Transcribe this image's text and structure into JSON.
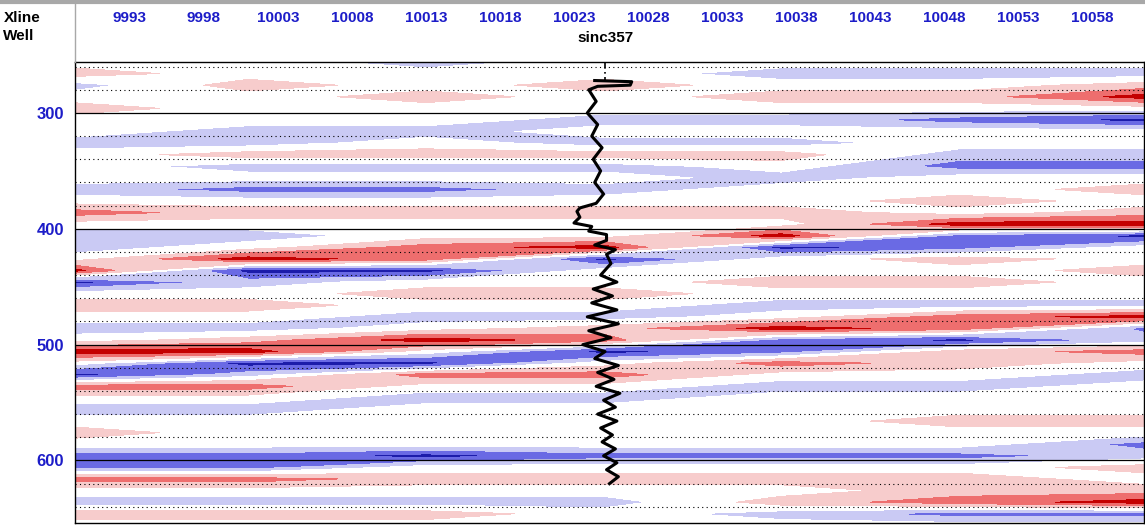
{
  "chart_data": {
    "type": "heatmap",
    "x_label": "Xline",
    "well_label": "Well",
    "x": [
      9989,
      10001,
      10013,
      10025,
      10037,
      10049,
      10062
    ],
    "y": [
      256,
      266,
      276,
      286,
      296,
      306,
      316,
      326,
      336,
      346,
      356,
      366,
      376,
      386,
      396,
      406,
      416,
      426,
      436,
      446,
      456,
      466,
      476,
      486,
      496,
      506,
      516,
      526,
      536,
      546,
      556,
      566,
      576,
      586,
      596,
      606,
      616,
      626,
      636,
      646,
      656
    ],
    "cells": [
      [
        0,
        0,
        -1,
        0,
        0,
        0,
        0
      ],
      [
        1,
        0,
        0,
        0,
        -1,
        -1,
        -1
      ],
      [
        -1,
        1,
        0,
        1,
        0,
        0,
        1
      ],
      [
        0,
        0,
        1,
        0,
        1,
        1,
        3
      ],
      [
        1,
        0,
        0,
        0,
        0,
        0,
        0
      ],
      [
        0,
        0,
        0,
        -1,
        -1,
        -2,
        -3
      ],
      [
        0,
        -1,
        -1,
        0,
        0,
        0,
        0
      ],
      [
        -1,
        -1,
        0,
        -1,
        -1,
        0,
        0
      ],
      [
        0,
        1,
        1,
        1,
        1,
        -1,
        -1
      ],
      [
        0,
        -1,
        -1,
        -1,
        0,
        -2,
        -2
      ],
      [
        0,
        0,
        0,
        0,
        -1,
        0,
        0
      ],
      [
        -1,
        -2,
        -2,
        -1,
        0,
        0,
        1
      ],
      [
        0,
        0,
        0,
        0,
        0,
        1,
        0
      ],
      [
        2,
        1,
        1,
        1,
        1,
        0,
        1
      ],
      [
        0,
        0,
        0,
        0,
        0,
        3,
        3
      ],
      [
        -1,
        -1,
        0,
        0,
        3,
        -2,
        -3
      ],
      [
        -1,
        0,
        2,
        3,
        -3,
        -2,
        0
      ],
      [
        0,
        3,
        2,
        -3,
        0,
        1,
        0
      ],
      [
        3,
        -3,
        -3,
        0,
        0,
        0,
        1
      ],
      [
        -3,
        -1,
        0,
        0,
        1,
        1,
        0
      ],
      [
        0,
        0,
        1,
        1,
        0,
        0,
        0
      ],
      [
        1,
        1,
        0,
        0,
        -1,
        -1,
        -1
      ],
      [
        0,
        0,
        -1,
        -1,
        0,
        2,
        3
      ],
      [
        -1,
        -1,
        0,
        1,
        3,
        2,
        -2
      ],
      [
        0,
        1,
        3,
        2,
        -2,
        -3,
        -1
      ],
      [
        3,
        3,
        0,
        -3,
        -2,
        1,
        2
      ],
      [
        0,
        -3,
        -3,
        0,
        2,
        1,
        0
      ],
      [
        -3,
        -1,
        2,
        2,
        0,
        0,
        -1
      ],
      [
        2,
        2,
        0,
        0,
        -1,
        -1,
        0
      ],
      [
        0,
        0,
        -1,
        -1,
        0,
        0,
        0
      ],
      [
        -1,
        -1,
        0,
        0,
        0,
        0,
        0
      ],
      [
        0,
        0,
        0,
        0,
        0,
        1,
        1
      ],
      [
        1,
        0,
        0,
        0,
        0,
        0,
        0
      ],
      [
        0,
        0,
        0,
        0,
        0,
        0,
        -2
      ],
      [
        -2,
        -2,
        -3,
        -2,
        -2,
        -2,
        -1
      ],
      [
        -2,
        -2,
        0,
        0,
        0,
        0,
        1
      ],
      [
        2,
        2,
        1,
        1,
        1,
        1,
        0
      ],
      [
        0,
        0,
        0,
        0,
        0,
        1,
        1
      ],
      [
        -1,
        -1,
        -1,
        -1,
        1,
        2,
        3
      ],
      [
        1,
        1,
        1,
        0,
        -1,
        -2,
        -2
      ],
      [
        0,
        0,
        0,
        0,
        0,
        0,
        0
      ]
    ],
    "colors": [
      "#1c1caa",
      "#6a6ae4",
      "#cacaf4",
      "#ffffff",
      "#f7cccc",
      "#ee6e6e",
      "#c40000"
    ],
    "xlim": [
      9989.3,
      10061.5
    ],
    "ylim": [
      654,
      256
    ],
    "xticks": [
      9993,
      9998,
      10003,
      10008,
      10013,
      10018,
      10023,
      10028,
      10033,
      10038,
      10043,
      10048,
      10053,
      10058
    ],
    "yticks": [
      300,
      400,
      500,
      600
    ],
    "time_lines": [
      260,
      280,
      320,
      340,
      360,
      380,
      420,
      440,
      460,
      480,
      520,
      540,
      560,
      580,
      620,
      640
    ],
    "grid": true,
    "well": {
      "name": "sinc357",
      "xline": 10025.1,
      "time": [
        272,
        273,
        276,
        277,
        280,
        290,
        300,
        310,
        320,
        330,
        340,
        350,
        360,
        370,
        378,
        382,
        385,
        390,
        395,
        398,
        402,
        405,
        410,
        414,
        418,
        422,
        430,
        440,
        446,
        452,
        458,
        464,
        470,
        476,
        482,
        488,
        494,
        500,
        506,
        512,
        518,
        524,
        530,
        536,
        542,
        548,
        554,
        560,
        566,
        572,
        578,
        584,
        590,
        596,
        602,
        608,
        614,
        620
      ],
      "values": [
        10024.4,
        10026.9,
        10026.8,
        10024.6,
        10024.0,
        10024.5,
        10023.9,
        10024.6,
        10024.2,
        10024.9,
        10024.3,
        10024.8,
        10024.4,
        10025.0,
        10024.5,
        10023.4,
        10023.2,
        10023.4,
        10023.0,
        10024.2,
        10024.0,
        10025.2,
        10025.2,
        10024.4,
        10025.8,
        10025.2,
        10025.5,
        10024.8,
        10025.9,
        10024.3,
        10025.6,
        10024.2,
        10025.9,
        10023.9,
        10026.0,
        10024.0,
        10025.5,
        10023.6,
        10025.1,
        10024.4,
        10026.0,
        10024.6,
        10025.7,
        10024.5,
        10026.1,
        10025.0,
        10025.8,
        10024.6,
        10025.9,
        10024.8,
        10025.6,
        10024.9,
        10025.8,
        10025.0,
        10025.9,
        10025.2,
        10026.0,
        10025.4
      ]
    }
  }
}
